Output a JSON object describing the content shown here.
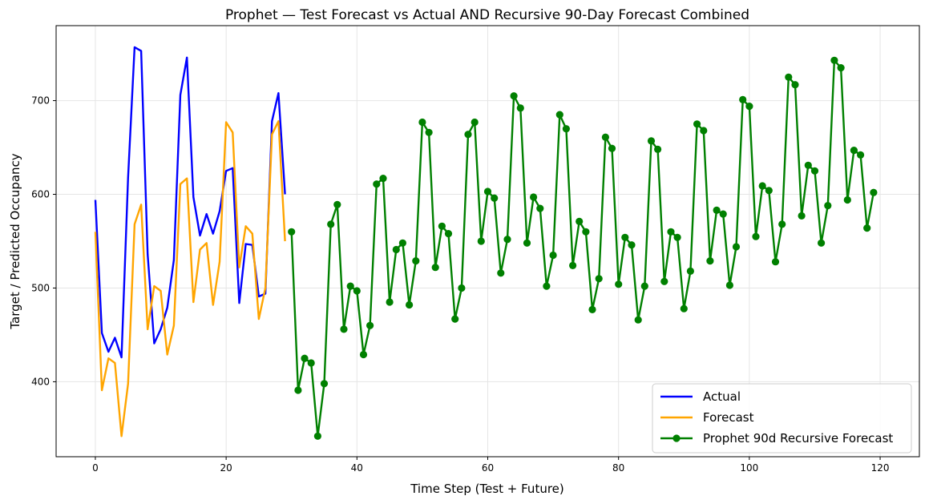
{
  "chart_data": {
    "type": "line",
    "title": "Prophet — Test Forecast vs Actual AND Recursive 90-Day Forecast Combined",
    "xlabel": "Time Step (Test + Future)",
    "ylabel": "Target / Predicted Occupancy",
    "xlim": [
      -6,
      126
    ],
    "ylim": [
      320,
      780
    ],
    "x_ticks": [
      0,
      20,
      40,
      60,
      80,
      100,
      120
    ],
    "y_ticks": [
      400,
      500,
      600,
      700
    ],
    "grid": true,
    "legend_position": "lower-right",
    "series": [
      {
        "name": "Actual",
        "color": "#0000ff",
        "marker": false,
        "x_start": 0,
        "values": [
          594,
          452,
          432,
          447,
          426,
          618,
          757,
          753,
          536,
          441,
          456,
          479,
          530,
          706,
          746,
          597,
          556,
          579,
          558,
          582,
          625,
          628,
          484,
          547,
          546,
          491,
          494,
          678,
          708,
          600
        ]
      },
      {
        "name": "Forecast",
        "color": "#ffa500",
        "marker": false,
        "x_start": 0,
        "values": [
          560,
          391,
          425,
          420,
          342,
          398,
          568,
          589,
          456,
          502,
          497,
          429,
          460,
          611,
          617,
          485,
          541,
          548,
          482,
          528,
          677,
          666,
          522,
          566,
          558,
          467,
          500,
          664,
          678,
          550
        ]
      },
      {
        "name": "Prophet 90d Recursive Forecast",
        "color": "#008000",
        "marker": true,
        "x_start": 30,
        "values": [
          560,
          391,
          425,
          420,
          342,
          398,
          568,
          589,
          456,
          502,
          497,
          429,
          460,
          611,
          617,
          485,
          541,
          548,
          482,
          529,
          677,
          666,
          522,
          566,
          558,
          467,
          500,
          664,
          677,
          550,
          603,
          596,
          516,
          552,
          705,
          692,
          548,
          597,
          585,
          502,
          535,
          685,
          670,
          524,
          571,
          560,
          477,
          510,
          661,
          649,
          504,
          554,
          546,
          466,
          502,
          657,
          648,
          507,
          560,
          554,
          478,
          518,
          675,
          668,
          529,
          583,
          579,
          503,
          544,
          701,
          694,
          555,
          609,
          604,
          528,
          568,
          725,
          717,
          577,
          631,
          625,
          548,
          588,
          743,
          735,
          594,
          647,
          642,
          564,
          602
        ]
      }
    ]
  }
}
